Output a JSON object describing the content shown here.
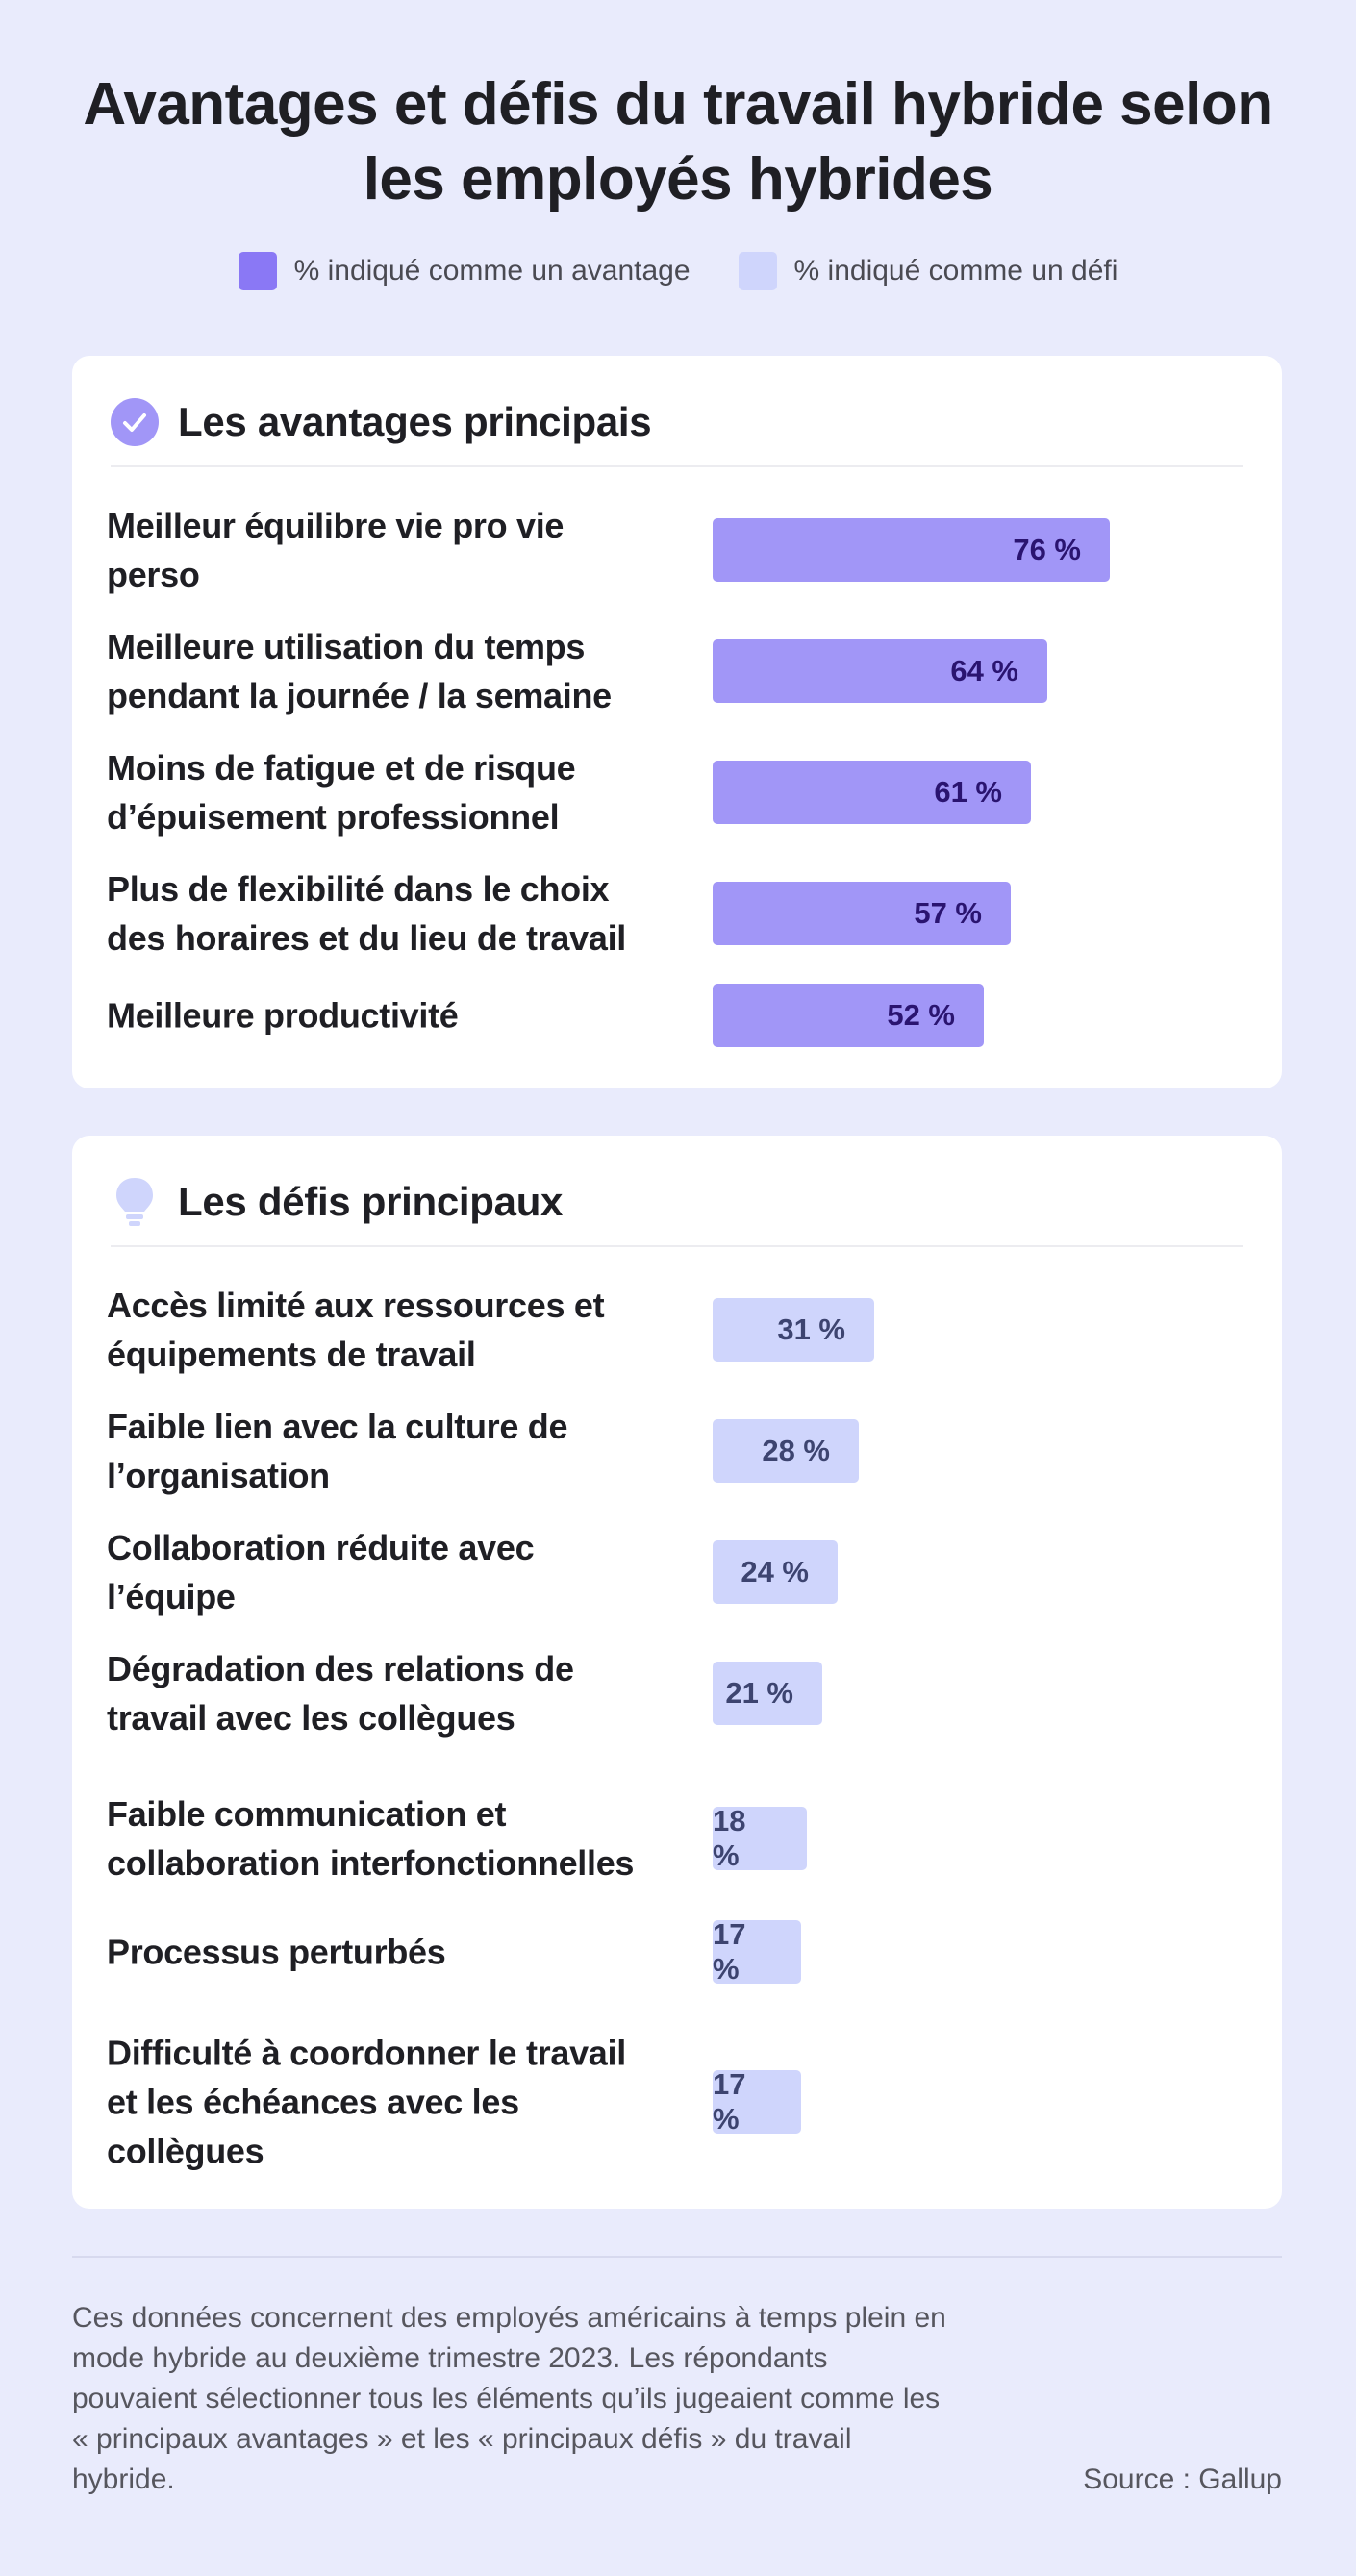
{
  "title": "Avantages et défis du travail hybride selon les employés hybrides",
  "legend": {
    "benefit_label": "% indiqué comme un avantage",
    "challenge_label": "% indiqué comme un défi"
  },
  "colors": {
    "benefit": "#a196f7",
    "benefit_swatch": "#8a78f5",
    "challenge": "#cfd5fc",
    "benefit_text": "#2a1470",
    "challenge_text": "#3d4470",
    "background": "#e9ebfc"
  },
  "icons": {
    "benefits": "check-circle-icon",
    "challenges": "lightbulb-icon"
  },
  "chart_data": [
    {
      "type": "bar",
      "orientation": "horizontal",
      "title": "Les avantages principais",
      "series_name": "% indiqué comme un avantage",
      "categories": [
        "Meilleur équilibre vie pro vie perso",
        "Meilleure utilisation du temps pendant la journée / la semaine",
        "Moins de fatigue et de risque d’épuisement professionnel",
        "Plus de flexibilité dans le choix des horaires et du lieu de travail",
        "Meilleure productivité"
      ],
      "values": [
        76,
        64,
        61,
        57,
        52
      ],
      "value_labels": [
        "76 %",
        "64 %",
        "61 %",
        "57 %",
        "52 %"
      ],
      "xlim": [
        0,
        100
      ]
    },
    {
      "type": "bar",
      "orientation": "horizontal",
      "title": "Les défis principaux",
      "series_name": "% indiqué comme un défi",
      "categories": [
        "Accès limité aux ressources et équipements de travail",
        "Faible lien avec la culture de l’organisation",
        "Collaboration réduite avec l’équipe",
        "Dégradation des relations de travail avec les collègues",
        "Faible communication et collaboration interfonctionnelles",
        "Processus perturbés",
        "Difficulté à coordonner le travail et les échéances avec les collègues"
      ],
      "values": [
        31,
        28,
        24,
        21,
        18,
        17,
        17
      ],
      "value_labels": [
        "31 %",
        "28 %",
        "24 %",
        "21 %",
        "18 %",
        "17 %",
        "17 %"
      ],
      "xlim": [
        0,
        100
      ]
    }
  ],
  "footnote": "Ces données concernent des employés américains à temps plein en mode hybride au deuxième trimestre 2023. Les répondants pouvaient sélectionner tous les éléments qu’ils jugeaient comme les « principaux avantages » et les « principaux défis » du travail hybride.",
  "source": "Source : Gallup"
}
